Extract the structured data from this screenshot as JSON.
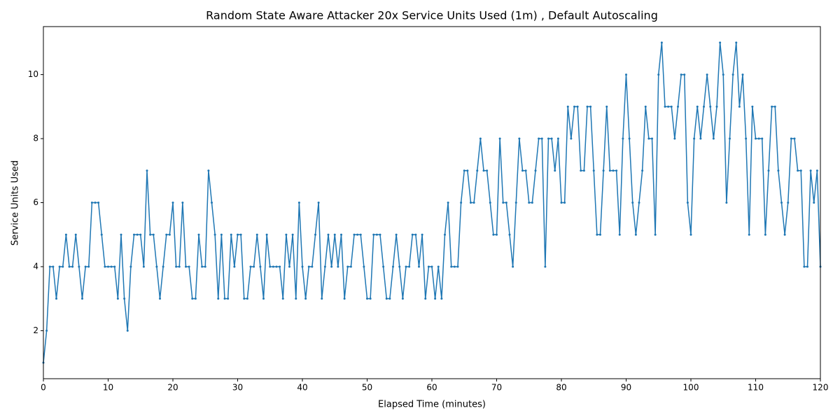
{
  "chart_data": {
    "type": "line",
    "title": "Random State Aware Attacker 20x Service Units Used (1m) , Default Autoscaling",
    "x_label": "Elapsed Time (minutes)",
    "y_label": "Service Units Used",
    "xlim": [
      0,
      120
    ],
    "ylim": [
      0.5,
      11.5
    ],
    "xticks": [
      0,
      10,
      20,
      30,
      40,
      50,
      60,
      70,
      80,
      90,
      100,
      110,
      120
    ],
    "yticks": [
      2,
      4,
      6,
      8,
      10
    ],
    "x": [
      0,
      0.5,
      1,
      1.5,
      2,
      2.5,
      3,
      3.5,
      4,
      4.5,
      5,
      5.5,
      6,
      6.5,
      7,
      7.5,
      8,
      8.5,
      9,
      9.5,
      10,
      10.5,
      11,
      11.5,
      12,
      12.5,
      13,
      13.5,
      14,
      14.5,
      15,
      15.5,
      16,
      16.5,
      17,
      17.5,
      18,
      18.5,
      19,
      19.5,
      20,
      20.5,
      21,
      21.5,
      22,
      22.5,
      23,
      23.5,
      24,
      24.5,
      25,
      25.5,
      26,
      26.5,
      27,
      27.5,
      28,
      28.5,
      29,
      29.5,
      30,
      30.5,
      31,
      31.5,
      32,
      32.5,
      33,
      33.5,
      34,
      34.5,
      35,
      35.5,
      36,
      36.5,
      37,
      37.5,
      38,
      38.5,
      39,
      39.5,
      40,
      40.5,
      41,
      41.5,
      42,
      42.5,
      43,
      43.5,
      44,
      44.5,
      45,
      45.5,
      46,
      46.5,
      47,
      47.5,
      48,
      48.5,
      49,
      49.5,
      50,
      50.5,
      51,
      51.5,
      52,
      52.5,
      53,
      53.5,
      54,
      54.5,
      55,
      55.5,
      56,
      56.5,
      57,
      57.5,
      58,
      58.5,
      59,
      59.5,
      60,
      60.5,
      61,
      61.5,
      62,
      62.5,
      63,
      63.5,
      64,
      64.5,
      65,
      65.5,
      66,
      66.5,
      67,
      67.5,
      68,
      68.5,
      69,
      69.5,
      70,
      70.5,
      71,
      71.5,
      72,
      72.5,
      73,
      73.5,
      74,
      74.5,
      75,
      75.5,
      76,
      76.5,
      77,
      77.5,
      78,
      78.5,
      79,
      79.5,
      80,
      80.5,
      81,
      81.5,
      82,
      82.5,
      83,
      83.5,
      84,
      84.5,
      85,
      85.5,
      86,
      86.5,
      87,
      87.5,
      88,
      88.5,
      89,
      89.5,
      90,
      90.5,
      91,
      91.5,
      92,
      92.5,
      93,
      93.5,
      94,
      94.5,
      95,
      95.5,
      96,
      96.5,
      97,
      97.5,
      98,
      98.5,
      99,
      99.5,
      100,
      100.5,
      101,
      101.5,
      102,
      102.5,
      103,
      103.5,
      104,
      104.5,
      105,
      105.5,
      106,
      106.5,
      107,
      107.5,
      108,
      108.5,
      109,
      109.5,
      110,
      110.5,
      111,
      111.5,
      112,
      112.5,
      113,
      113.5,
      114,
      114.5,
      115,
      115.5,
      116,
      116.5,
      117,
      117.5,
      118,
      118.5,
      119,
      119.5,
      120
    ],
    "series": [
      {
        "color": "#1f77b4",
        "values": [
          1,
          2,
          4,
          4,
          3,
          4,
          4,
          5,
          4,
          4,
          5,
          4,
          3,
          4,
          4,
          6,
          6,
          6,
          5,
          4,
          4,
          4,
          4,
          3,
          5,
          3,
          2,
          4,
          5,
          5,
          5,
          4,
          7,
          5,
          5,
          4,
          3,
          4,
          5,
          5,
          6,
          4,
          4,
          6,
          4,
          4,
          3,
          3,
          5,
          4,
          4,
          7,
          6,
          5,
          3,
          5,
          3,
          3,
          5,
          4,
          5,
          5,
          3,
          3,
          4,
          4,
          5,
          4,
          3,
          5,
          4,
          4,
          4,
          4,
          3,
          5,
          4,
          5,
          3,
          6,
          4,
          3,
          4,
          4,
          5,
          6,
          3,
          4,
          5,
          4,
          5,
          4,
          5,
          3,
          4,
          4,
          5,
          5,
          5,
          4,
          3,
          3,
          5,
          5,
          5,
          4,
          3,
          3,
          4,
          5,
          4,
          3,
          4,
          4,
          5,
          5,
          4,
          5,
          3,
          4,
          4,
          3,
          4,
          3,
          5,
          6,
          4,
          4,
          4,
          6,
          7,
          7,
          6,
          6,
          7,
          8,
          7,
          7,
          6,
          5,
          5,
          8,
          6,
          6,
          5,
          4,
          6,
          8,
          7,
          7,
          6,
          6,
          7,
          8,
          8,
          4,
          8,
          8,
          7,
          8,
          6,
          6,
          9,
          8,
          9,
          9,
          7,
          7,
          9,
          9,
          7,
          5,
          5,
          7,
          9,
          7,
          7,
          7,
          5,
          8,
          10,
          8,
          6,
          5,
          6,
          7,
          9,
          8,
          8,
          5,
          10,
          11,
          9,
          9,
          9,
          8,
          9,
          10,
          10,
          6,
          5,
          8,
          9,
          8,
          9,
          10,
          9,
          8,
          9,
          11,
          10,
          6,
          8,
          10,
          11,
          9,
          10,
          8,
          5,
          9,
          8,
          8,
          8,
          5,
          7,
          9,
          9,
          7,
          6,
          5,
          6,
          8,
          8,
          7,
          7,
          4,
          4,
          7,
          6,
          7,
          4
        ]
      }
    ]
  }
}
